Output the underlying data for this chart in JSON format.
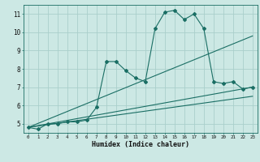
{
  "title": "",
  "xlabel": "Humidex (Indice chaleur)",
  "ylabel": "",
  "background_color": "#cce8e4",
  "grid_color": "#aacfcb",
  "line_color": "#1a6e64",
  "xlim": [
    -0.5,
    23.5
  ],
  "ylim": [
    4.5,
    11.5
  ],
  "xticks": [
    0,
    1,
    2,
    3,
    4,
    5,
    6,
    7,
    8,
    9,
    10,
    11,
    12,
    13,
    14,
    15,
    16,
    17,
    18,
    19,
    20,
    21,
    22,
    23
  ],
  "yticks": [
    5,
    6,
    7,
    8,
    9,
    10,
    11
  ],
  "series1_x": [
    0,
    1,
    2,
    3,
    4,
    5,
    6,
    7,
    8,
    9,
    10,
    11,
    12,
    13,
    14,
    15,
    16,
    17,
    18,
    19,
    20,
    21,
    22,
    23
  ],
  "series1_y": [
    4.8,
    4.7,
    5.0,
    5.0,
    5.1,
    5.1,
    5.2,
    5.9,
    8.4,
    8.4,
    7.9,
    7.5,
    7.3,
    10.2,
    11.1,
    11.2,
    10.7,
    11.0,
    10.2,
    7.3,
    7.2,
    7.3,
    6.9,
    7.0
  ],
  "series2_x": [
    0,
    23
  ],
  "series2_y": [
    4.8,
    9.8
  ],
  "series3_x": [
    0,
    23
  ],
  "series3_y": [
    4.8,
    7.0
  ],
  "series4_x": [
    0,
    23
  ],
  "series4_y": [
    4.8,
    6.5
  ]
}
